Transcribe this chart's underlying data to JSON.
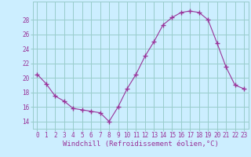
{
  "x": [
    0,
    1,
    2,
    3,
    4,
    5,
    6,
    7,
    8,
    9,
    10,
    11,
    12,
    13,
    14,
    15,
    16,
    17,
    18,
    19,
    20,
    21,
    22,
    23
  ],
  "y": [
    20.5,
    19.2,
    17.5,
    16.8,
    15.8,
    15.6,
    15.4,
    15.2,
    14.0,
    16.0,
    18.5,
    20.5,
    23.0,
    25.0,
    27.3,
    28.3,
    29.0,
    29.2,
    29.0,
    28.0,
    24.8,
    21.5,
    19.0,
    18.5
  ],
  "line_color": "#993399",
  "marker": "+",
  "marker_size": 4,
  "bg_color": "#cceeff",
  "grid_color": "#99cccc",
  "xlabel": "Windchill (Refroidissement éolien,°C)",
  "xlabel_color": "#993399",
  "xlabel_fontsize": 6.5,
  "tick_color": "#993399",
  "tick_fontsize": 5.5,
  "ytick_start": 14,
  "ytick_end": 28,
  "ytick_step": 2,
  "ylim": [
    13.0,
    30.5
  ],
  "xlim": [
    -0.5,
    23.5
  ]
}
